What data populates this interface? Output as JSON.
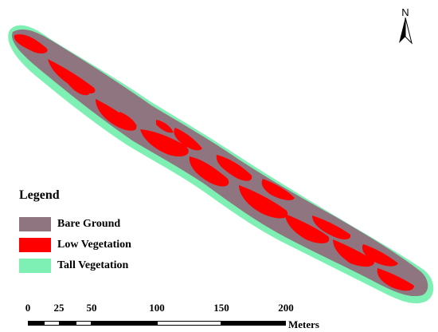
{
  "colors": {
    "bare_ground": "#8f7580",
    "low_vegetation": "#ff0000",
    "tall_vegetation": "#7ff0b4"
  },
  "north_arrow": {
    "label": "N",
    "icon": "north-arrow-icon"
  },
  "legend": {
    "title": "Legend",
    "items": [
      {
        "label": "Bare Ground",
        "color": "#8f7580"
      },
      {
        "label": "Low Vegetation",
        "color": "#ff0000"
      },
      {
        "label": "Tall Vegetation",
        "color": "#7ff0b4"
      }
    ]
  },
  "scale_bar": {
    "units": "Meters",
    "ticks": [
      "0",
      "25",
      "50",
      "100",
      "150",
      "200"
    ]
  }
}
